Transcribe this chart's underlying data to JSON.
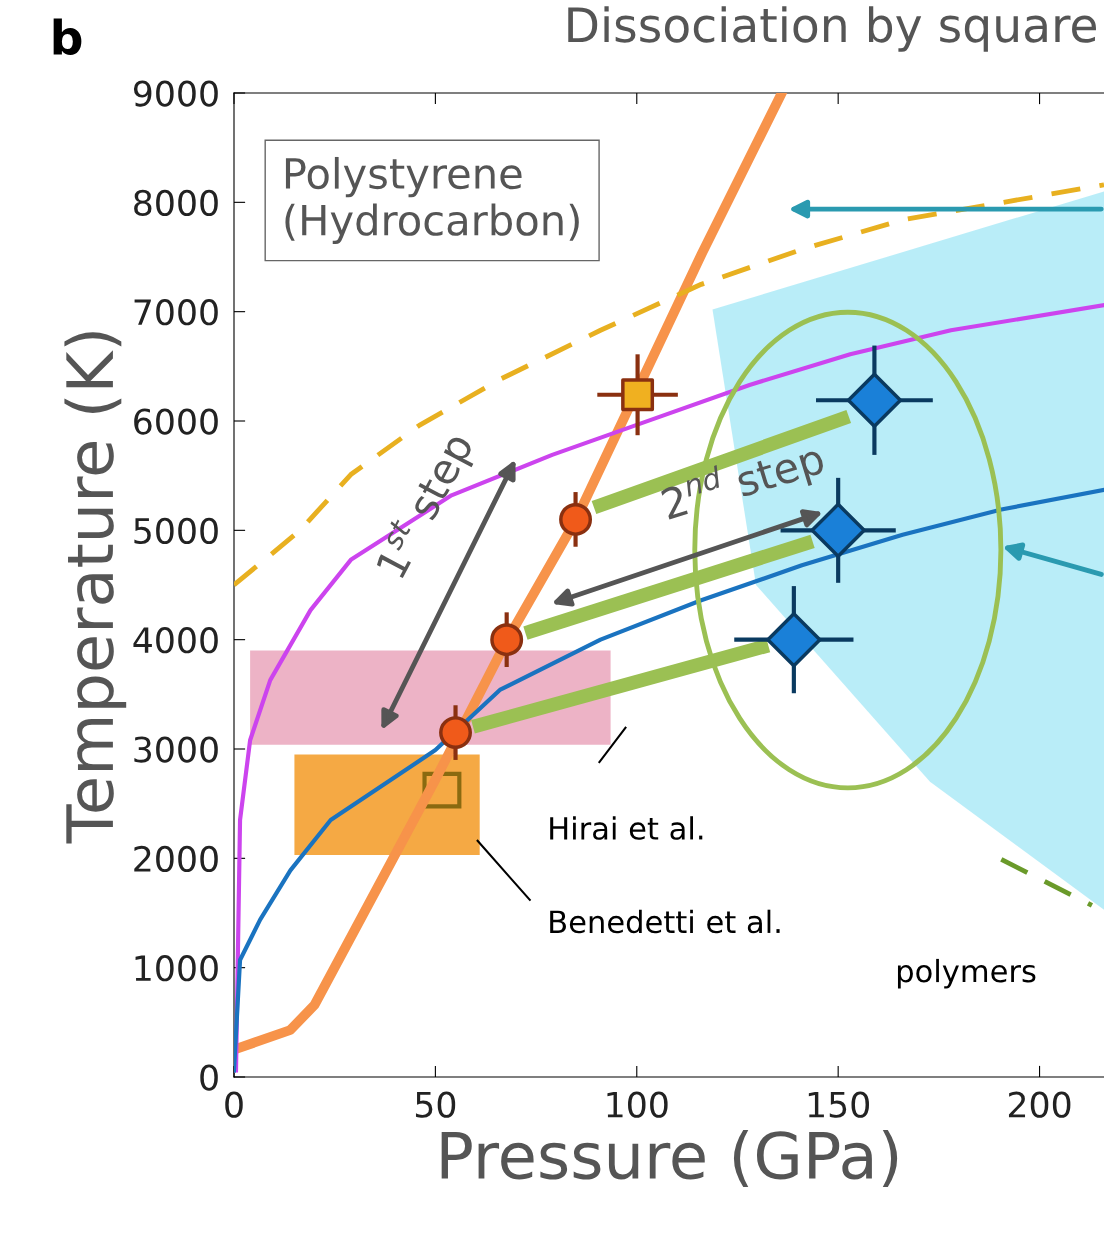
{
  "chart_data": {
    "type": "line",
    "title": "Dissociation by square",
    "xlabel": "Pressure (GPa)",
    "ylabel": "Temperature (K)",
    "xlim": [
      0,
      216
    ],
    "ylim": [
      0,
      9000
    ],
    "xticks": [
      0,
      50,
      100,
      150,
      200
    ],
    "yticks": [
      0,
      1000,
      2000,
      3000,
      4000,
      5000,
      6000,
      7000,
      8000,
      9000
    ],
    "grid": false,
    "legend": false,
    "annotations": [
      "b",
      "Polystyrene\n(Hydrocarbon)",
      "1$^{st}$ step",
      "2$^{nd}$ step",
      "Hirai et al.",
      "Benedetti et al.",
      "polymers"
    ],
    "series": [
      {
        "type": "line",
        "color": "#f7934a",
        "line_style": "solid",
        "x": [
          0,
          14,
          20,
          50,
          67.7,
          84.8,
          116,
          136
        ],
        "values": [
          250,
          430,
          660,
          2720,
          3990,
          5090,
          7520,
          9000
        ]
      },
      {
        "type": "line",
        "color": "#cc44ee",
        "line_style": "solid",
        "x": [
          0.5,
          1.5,
          4,
          9,
          19,
          29,
          54,
          79,
          103.5,
          128,
          153,
          178,
          216
        ],
        "values": [
          60,
          2350,
          3080,
          3630,
          4270,
          4730,
          5320,
          5690,
          6010,
          6330,
          6610,
          6830,
          7060
        ]
      },
      {
        "type": "line",
        "color": "#1a73c0",
        "line_style": "solid",
        "x": [
          0,
          1.5,
          6.5,
          14,
          24,
          50,
          66,
          91,
          116,
          141,
          166,
          190.5,
          216
        ],
        "values": [
          60,
          1070,
          1440,
          1890,
          2350,
          2990,
          3540,
          4000,
          4360,
          4680,
          4960,
          5190,
          5370
        ]
      },
      {
        "type": "line",
        "color": "#e8b020",
        "line_style": "dashed",
        "x": [
          0,
          16.4,
          29,
          46,
          66,
          91,
          116,
          141,
          166,
          216
        ],
        "values": [
          4500,
          5000,
          5510,
          5960,
          6380,
          6830,
          7250,
          7570,
          7840,
          8160
        ]
      },
      {
        "type": "line",
        "color": "#6a9a2a",
        "line_style": "dashed",
        "x": [
          190.5,
          213
        ],
        "values": [
          1990,
          1570
        ]
      },
      {
        "type": "line",
        "color": "#9bc053",
        "line_style": "solid",
        "x": [
          61,
          131
        ],
        "values": [
          3220,
          3930
        ]
      },
      {
        "type": "line",
        "color": "#9bc053",
        "line_style": "solid",
        "x": [
          74,
          142
        ],
        "values": [
          4080,
          4880
        ]
      },
      {
        "type": "line",
        "color": "#9bc053",
        "line_style": "solid",
        "x": [
          91,
          151
        ],
        "values": [
          5230,
          6020
        ]
      },
      {
        "type": "scatter",
        "color": "#f05a1a",
        "marker": "circle",
        "x": [
          55,
          67.7,
          84.8
        ],
        "values": [
          3150,
          4000,
          5100
        ],
        "errors": [
          250,
          250,
          250
        ]
      },
      {
        "type": "scatter",
        "color": "#f0b020",
        "marker": "square",
        "x": [
          100.2
        ],
        "values": [
          6240
        ],
        "errors": [
          370
        ],
        "xerrors": [
          10
        ]
      },
      {
        "type": "scatter",
        "color": "#1a80d8",
        "marker": "diamond",
        "x": [
          159,
          150,
          139
        ],
        "values": [
          6190,
          5000,
          4000
        ],
        "errors": [
          500,
          480,
          490
        ],
        "xerrors": [
          14.5,
          14.3,
          14.8
        ]
      }
    ]
  }
}
